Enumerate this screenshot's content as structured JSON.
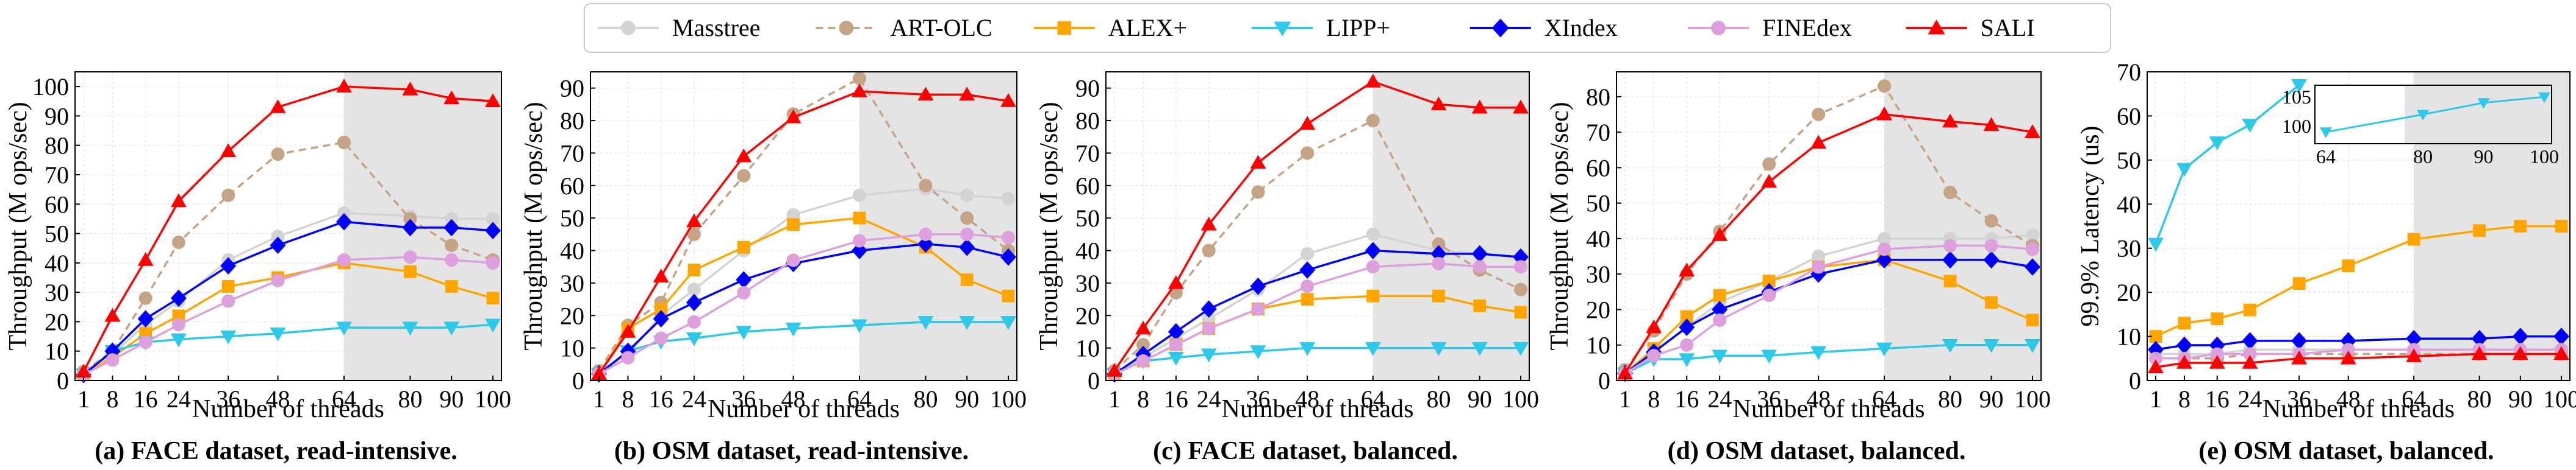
{
  "legend": {
    "position": "top-center",
    "entries": [
      {
        "name": "Masstree",
        "color": "#d3d3d3",
        "marker": "circle",
        "dash": "solid"
      },
      {
        "name": "ART-OLC",
        "color": "#c4a484",
        "marker": "circle",
        "dash": "dashed"
      },
      {
        "name": "ALEX+",
        "color": "#ffa500",
        "marker": "square",
        "dash": "solid"
      },
      {
        "name": "LIPP+",
        "color": "#2ec8e8",
        "marker": "triangle-down",
        "dash": "solid"
      },
      {
        "name": "XIndex",
        "color": "#0000ff",
        "marker": "diamond",
        "dash": "solid"
      },
      {
        "name": "FINEdex",
        "color": "#dda0dd",
        "marker": "circle",
        "dash": "solid"
      },
      {
        "name": "SALI",
        "color": "#ff0000",
        "marker": "triangle-up",
        "dash": "solid"
      }
    ]
  },
  "chart_data": [
    {
      "type": "line",
      "caption": "(a) FACE dataset, read-intensive.",
      "xlabel": "Number of threads",
      "ylabel": "Throughput (M ops/sec)",
      "x": [
        1,
        8,
        16,
        24,
        36,
        48,
        64,
        80,
        90,
        100
      ],
      "x_ticks": [
        "1",
        "8",
        "16",
        "24",
        "36",
        "48",
        "64",
        "80",
        "90",
        "100"
      ],
      "ylim": [
        0,
        105
      ],
      "y_ticks": [
        0,
        10,
        20,
        30,
        40,
        50,
        60,
        70,
        80,
        90,
        100
      ],
      "shaded_from": 64,
      "series": [
        {
          "name": "Masstree",
          "values": [
            3,
            9,
            19,
            27,
            41,
            49,
            57,
            56,
            55,
            55
          ]
        },
        {
          "name": "ART-OLC",
          "values": [
            3,
            10,
            28,
            47,
            63,
            77,
            81,
            55,
            46,
            41
          ]
        },
        {
          "name": "ALEX+",
          "values": [
            2,
            8,
            16,
            22,
            32,
            35,
            40,
            37,
            32,
            28
          ]
        },
        {
          "name": "LIPP+",
          "values": [
            2,
            10,
            13,
            14,
            15,
            16,
            18,
            18,
            18,
            19
          ]
        },
        {
          "name": "XIndex",
          "values": [
            2,
            10,
            21,
            28,
            39,
            46,
            54,
            52,
            52,
            51
          ]
        },
        {
          "name": "FINEdex",
          "values": [
            2,
            7,
            13,
            19,
            27,
            34,
            41,
            42,
            41,
            40
          ]
        },
        {
          "name": "SALI",
          "values": [
            3,
            22,
            41,
            61,
            78,
            93,
            100,
            99,
            96,
            95
          ]
        }
      ]
    },
    {
      "type": "line",
      "caption": "(b) OSM dataset, read-intensive.",
      "xlabel": "Number of threads",
      "ylabel": "Throughput (M ops/sec)",
      "x": [
        1,
        8,
        16,
        24,
        36,
        48,
        64,
        80,
        90,
        100
      ],
      "x_ticks": [
        "1",
        "8",
        "16",
        "24",
        "36",
        "48",
        "64",
        "80",
        "90",
        "100"
      ],
      "ylim": [
        0,
        95
      ],
      "y_ticks": [
        0,
        10,
        20,
        30,
        40,
        50,
        60,
        70,
        80,
        90
      ],
      "shaded_from": 64,
      "series": [
        {
          "name": "Masstree",
          "values": [
            3,
            8,
            20,
            28,
            40,
            51,
            57,
            59,
            57,
            56
          ]
        },
        {
          "name": "ART-OLC",
          "values": [
            3,
            17,
            24,
            45,
            63,
            82,
            93,
            60,
            50,
            40
          ]
        },
        {
          "name": "ALEX+",
          "values": [
            2,
            16,
            22,
            34,
            41,
            48,
            50,
            41,
            31,
            26
          ]
        },
        {
          "name": "LIPP+",
          "values": [
            2,
            9,
            12,
            13,
            15,
            16,
            17,
            18,
            18,
            18
          ]
        },
        {
          "name": "XIndex",
          "values": [
            2,
            9,
            19,
            24,
            31,
            36,
            40,
            42,
            41,
            38
          ]
        },
        {
          "name": "FINEdex",
          "values": [
            2,
            7,
            13,
            18,
            27,
            37,
            43,
            45,
            45,
            44
          ]
        },
        {
          "name": "SALI",
          "values": [
            2,
            15,
            32,
            49,
            69,
            81,
            89,
            88,
            88,
            86
          ]
        }
      ]
    },
    {
      "type": "line",
      "caption": "(c) FACE dataset, balanced.",
      "xlabel": "Number of threads",
      "ylabel": "Throughput (M ops/sec)",
      "x": [
        1,
        8,
        16,
        24,
        36,
        48,
        64,
        80,
        90,
        100
      ],
      "x_ticks": [
        "1",
        "8",
        "16",
        "24",
        "36",
        "48",
        "64",
        "80",
        "90",
        "100"
      ],
      "ylim": [
        0,
        95
      ],
      "y_ticks": [
        0,
        10,
        20,
        30,
        40,
        50,
        60,
        70,
        80,
        90
      ],
      "shaded_from": 64,
      "series": [
        {
          "name": "Masstree",
          "values": [
            2,
            7,
            13,
            19,
            28,
            39,
            45,
            40,
            39,
            38
          ]
        },
        {
          "name": "ART-OLC",
          "values": [
            3,
            11,
            27,
            40,
            58,
            70,
            80,
            42,
            34,
            28
          ]
        },
        {
          "name": "ALEX+",
          "values": [
            2,
            6,
            11,
            16,
            22,
            25,
            26,
            26,
            23,
            21
          ]
        },
        {
          "name": "LIPP+",
          "values": [
            2,
            6,
            7,
            8,
            9,
            10,
            10,
            10,
            10,
            10
          ]
        },
        {
          "name": "XIndex",
          "values": [
            2,
            8,
            15,
            22,
            29,
            34,
            40,
            39,
            39,
            38
          ]
        },
        {
          "name": "FINEdex",
          "values": [
            2,
            6,
            11,
            16,
            22,
            29,
            35,
            36,
            35,
            35
          ]
        },
        {
          "name": "SALI",
          "values": [
            3,
            16,
            30,
            48,
            67,
            79,
            92,
            85,
            84,
            84
          ]
        }
      ]
    },
    {
      "type": "line",
      "caption": "(d) OSM dataset, balanced.",
      "xlabel": "Number of threads",
      "ylabel": "Throughput (M ops/sec)",
      "x": [
        1,
        8,
        16,
        24,
        36,
        48,
        64,
        80,
        90,
        100
      ],
      "x_ticks": [
        "1",
        "8",
        "16",
        "24",
        "36",
        "48",
        "64",
        "80",
        "90",
        "100"
      ],
      "ylim": [
        0,
        87
      ],
      "y_ticks": [
        0,
        10,
        20,
        30,
        40,
        50,
        60,
        70,
        80
      ],
      "shaded_from": 64,
      "series": [
        {
          "name": "Masstree",
          "values": [
            2,
            8,
            15,
            22,
            28,
            35,
            40,
            40,
            40,
            41
          ]
        },
        {
          "name": "ART-OLC",
          "values": [
            3,
            14,
            30,
            42,
            61,
            75,
            83,
            53,
            45,
            38
          ]
        },
        {
          "name": "ALEX+",
          "values": [
            2,
            9,
            18,
            24,
            28,
            32,
            34,
            28,
            22,
            17
          ]
        },
        {
          "name": "LIPP+",
          "values": [
            2,
            6,
            6,
            7,
            7,
            8,
            9,
            10,
            10,
            10
          ]
        },
        {
          "name": "XIndex",
          "values": [
            2,
            8,
            15,
            20,
            25,
            30,
            34,
            34,
            34,
            32
          ]
        },
        {
          "name": "FINEdex",
          "values": [
            2,
            7,
            10,
            17,
            24,
            32,
            37,
            38,
            38,
            37
          ]
        },
        {
          "name": "SALI",
          "values": [
            2,
            15,
            31,
            41,
            56,
            67,
            75,
            73,
            72,
            70
          ]
        }
      ]
    },
    {
      "type": "line",
      "caption": "(e) OSM dataset, balanced.",
      "xlabel": "Number of threads",
      "ylabel": "99.9% Latency (us)",
      "x": [
        1,
        8,
        16,
        24,
        36,
        48,
        64,
        80,
        90,
        100
      ],
      "x_ticks": [
        "1",
        "8",
        "16",
        "24",
        "36",
        "48",
        "64",
        "80",
        "90",
        "100"
      ],
      "ylim": [
        0,
        70
      ],
      "y_ticks": [
        0,
        10,
        20,
        30,
        40,
        50,
        60,
        70
      ],
      "shaded_from": 64,
      "series": [
        {
          "name": "Masstree",
          "values": [
            6,
            6,
            6,
            7,
            7,
            7,
            7,
            7,
            7,
            7
          ]
        },
        {
          "name": "ART-OLC",
          "values": [
            5,
            5,
            5,
            6,
            6,
            6,
            6,
            6,
            6,
            6
          ]
        },
        {
          "name": "ALEX+",
          "values": [
            10,
            13,
            14,
            16,
            22,
            26,
            32,
            34,
            35,
            35
          ]
        },
        {
          "name": "LIPP+",
          "values": [
            31,
            48,
            54,
            58,
            67,
            null,
            null,
            null,
            null,
            null
          ]
        },
        {
          "name": "XIndex",
          "values": [
            7,
            8,
            8,
            9,
            9,
            9,
            9.5,
            9.5,
            10,
            10
          ]
        },
        {
          "name": "FINEdex",
          "values": [
            5,
            5,
            6,
            6,
            6,
            7,
            7,
            7,
            7,
            7
          ]
        },
        {
          "name": "SALI",
          "values": [
            3,
            4,
            4,
            4,
            5,
            5,
            5.5,
            6,
            6,
            6
          ]
        }
      ],
      "inset": {
        "series_name": "LIPP+",
        "x": [
          64,
          80,
          90,
          100
        ],
        "x_ticks": [
          "64",
          "80",
          "90",
          "100"
        ],
        "values": [
          99,
          102,
          104,
          105
        ],
        "ylim": [
          97,
          107
        ],
        "y_ticks": [
          100,
          105
        ],
        "shaded_from": 80
      }
    }
  ]
}
